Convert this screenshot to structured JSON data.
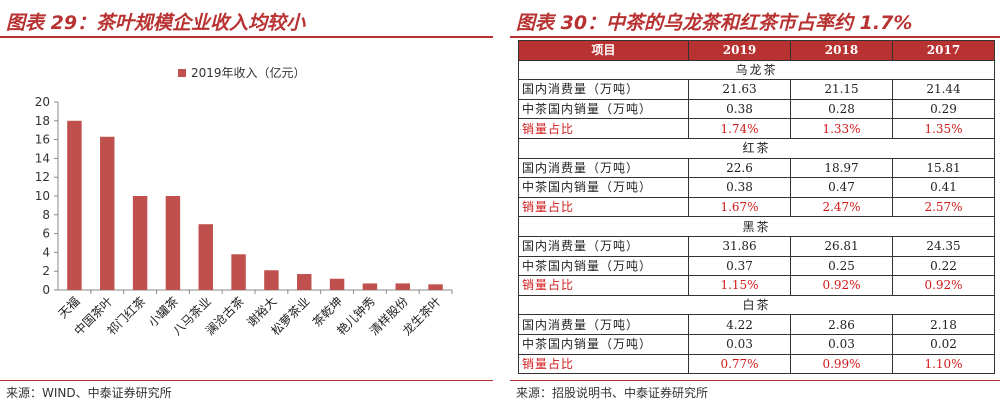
{
  "left": {
    "title": "图表 29：茶叶规模企业收入均较小",
    "source": "来源：WIND、中泰证券研究所"
  },
  "right": {
    "title": "图表 30：中茶的乌龙茶和红茶市占率约 1.7%",
    "source": "来源：招股说明书、中泰证券研究所",
    "columns": [
      "项目",
      "2019",
      "2018",
      "2017"
    ],
    "sections": [
      {
        "name": "乌龙茶",
        "rows": [
          {
            "label": "国内消费量（万吨）",
            "values": [
              "21.63",
              "21.15",
              "21.44"
            ]
          },
          {
            "label": "中茶国内销量（万吨）",
            "values": [
              "0.38",
              "0.28",
              "0.29"
            ]
          },
          {
            "label": "销量占比",
            "values": [
              "1.74%",
              "1.33%",
              "1.35%"
            ]
          }
        ]
      },
      {
        "name": "红茶",
        "rows": [
          {
            "label": "国内消费量（万吨）",
            "values": [
              "22.6",
              "18.97",
              "15.81"
            ]
          },
          {
            "label": "中茶国内销量（万吨）",
            "values": [
              "0.38",
              "0.47",
              "0.41"
            ]
          },
          {
            "label": "销量占比",
            "values": [
              "1.67%",
              "2.47%",
              "2.57%"
            ]
          }
        ]
      },
      {
        "name": "黑茶",
        "rows": [
          {
            "label": "国内消费量（万吨）",
            "values": [
              "31.86",
              "26.81",
              "24.35"
            ]
          },
          {
            "label": "中茶国内销量（万吨）",
            "values": [
              "0.37",
              "0.25",
              "0.22"
            ]
          },
          {
            "label": "销量占比",
            "values": [
              "1.15%",
              "0.92%",
              "0.92%"
            ]
          }
        ]
      },
      {
        "name": "白茶",
        "rows": [
          {
            "label": "国内消费量（万吨）",
            "values": [
              "4.22",
              "2.86",
              "2.18"
            ]
          },
          {
            "label": "中茶国内销量（万吨）",
            "values": [
              "0.03",
              "0.03",
              "0.02"
            ]
          },
          {
            "label": "销量占比",
            "values": [
              "0.77%",
              "0.99%",
              "1.10%"
            ]
          }
        ]
      }
    ]
  },
  "colors": {
    "accent": "#b83232",
    "bar": "#c0504d",
    "share_text": "#d11a1a"
  },
  "chart_data": {
    "type": "bar",
    "title": "",
    "categories": [
      "天福",
      "中国茶叶",
      "祁门红茶",
      "小罐茶",
      "八马茶业",
      "澜沧古茶",
      "谢裕大",
      "松萝茶业",
      "茶乾坤",
      "艳儿钟秀",
      "清样股份",
      "龙生茶叶"
    ],
    "series": [
      {
        "name": "2019年收入（亿元）",
        "values": [
          18.0,
          16.3,
          10.0,
          10.0,
          7.0,
          3.8,
          2.1,
          1.7,
          1.2,
          0.7,
          0.7,
          0.6
        ]
      }
    ],
    "xlabel": "",
    "ylabel": "",
    "ylim": [
      0,
      20
    ],
    "yticks": [
      0,
      2,
      4,
      6,
      8,
      10,
      12,
      14,
      16,
      18,
      20
    ],
    "grid": false,
    "legend": "top-center"
  }
}
